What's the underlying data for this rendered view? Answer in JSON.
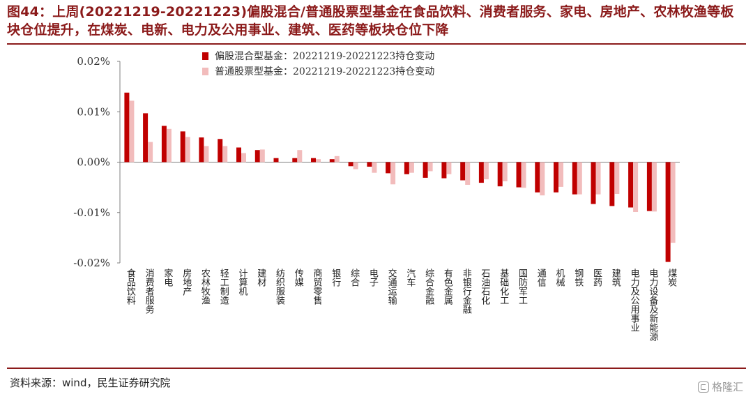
{
  "title": "图44：上周(20221219-20221223)偏股混合/普通股票型基金在食品饮料、消费者服务、家电、房地产、农林牧渔等板块仓位提升，在煤炭、电新、电力及公用事业、建筑、医药等板块仓位下降",
  "source": "资料来源：wind，民生证券研究院",
  "watermark": "格隆汇",
  "colors": {
    "title": "#8b1a1a",
    "series1": "#c00000",
    "series2": "#f2bcbc"
  },
  "chart_data": {
    "type": "bar",
    "categories": [
      "食品饮料",
      "消费者服务",
      "家电",
      "房地产",
      "农林牧渔",
      "轻工制造",
      "计算机",
      "建材",
      "纺织服装",
      "传媒",
      "商贸零售",
      "银行",
      "综合",
      "电子",
      "交通运输",
      "汽车",
      "综合金融",
      "有色金属",
      "非银行金融",
      "石油石化",
      "基础化工",
      "国防军工",
      "通信",
      "机械",
      "钢铁",
      "医药",
      "建筑",
      "电力及公用事业",
      "电力设备及新能源",
      "煤炭"
    ],
    "series": [
      {
        "name": "偏股混合型基金：20221219-20221223持仓变动",
        "values": [
          0.0138,
          0.0097,
          0.0072,
          0.0061,
          0.0049,
          0.0046,
          0.0029,
          0.0024,
          0.0008,
          0.0008,
          0.0008,
          0.0006,
          -0.0008,
          -0.0009,
          -0.0022,
          -0.0024,
          -0.0031,
          -0.0032,
          -0.0036,
          -0.0041,
          -0.0048,
          -0.005,
          -0.006,
          -0.006,
          -0.0064,
          -0.0083,
          -0.0087,
          -0.009,
          -0.0097,
          -0.0198
        ]
      },
      {
        "name": "普通股票型基金：20221219-20221223持仓变动",
        "values": [
          0.0122,
          0.004,
          0.0066,
          0.005,
          0.0032,
          0.0032,
          0.0018,
          0.0025,
          0.0,
          0.0024,
          0.0006,
          0.0012,
          -0.0014,
          -0.0021,
          -0.0044,
          -0.0021,
          -0.0018,
          -0.0024,
          -0.0045,
          -0.0034,
          -0.0038,
          -0.0051,
          -0.0066,
          -0.0049,
          -0.0064,
          -0.0064,
          -0.0063,
          -0.0099,
          -0.0098,
          -0.016
        ]
      }
    ],
    "y_ticks": [
      "0.02%",
      "0.01%",
      "0.00%",
      "-0.01%",
      "-0.02%"
    ],
    "ylim": [
      -0.02,
      0.02
    ],
    "legend_position": "top"
  }
}
